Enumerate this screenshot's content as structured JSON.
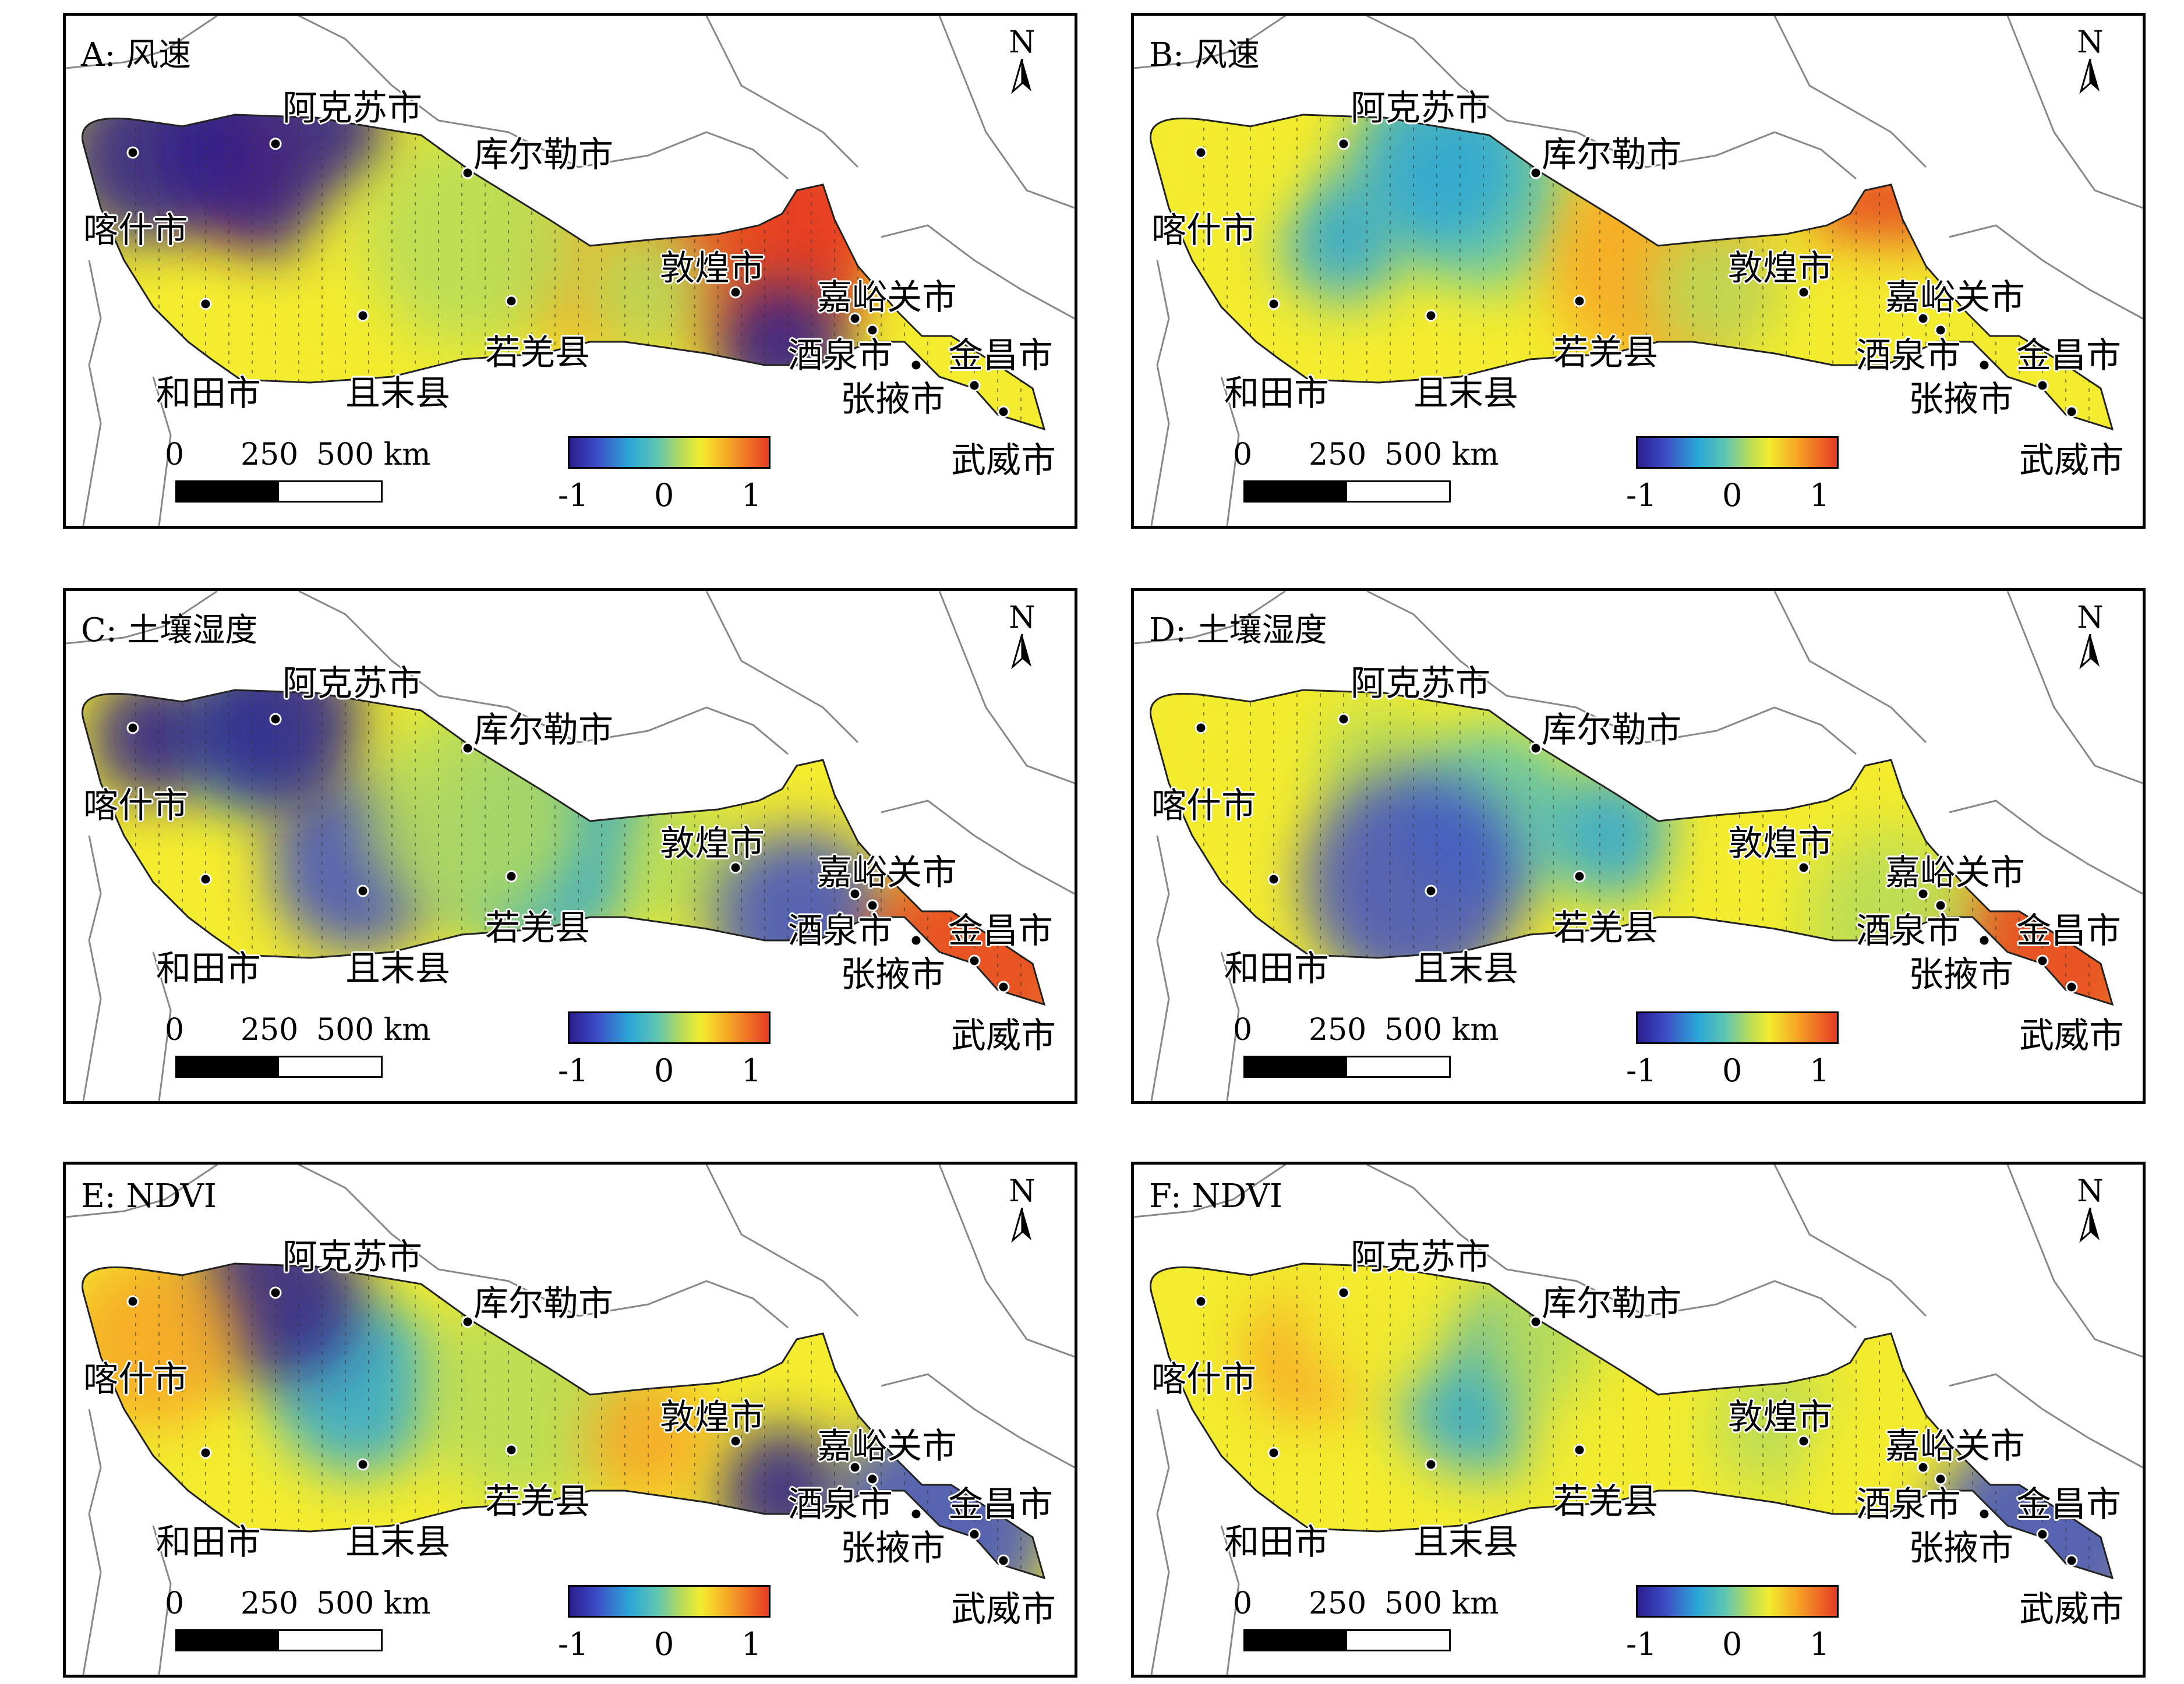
{
  "panels": [
    {
      "id": "A",
      "title": "A: 风速"
    },
    {
      "id": "B",
      "title": "B: 风速"
    },
    {
      "id": "C",
      "title": "C: 土壤湿度"
    },
    {
      "id": "D",
      "title": "D: 土壤湿度"
    },
    {
      "id": "E",
      "title": "E: NDVI"
    },
    {
      "id": "F",
      "title": "F: NDVI"
    }
  ],
  "cities": {
    "aksu": "阿克苏市",
    "korla": "库尔勒市",
    "kashgar": "喀什市",
    "dunhuang": "敦煌市",
    "jiayuguan": "嘉峪关市",
    "jiuquan": "酒泉市",
    "jinchang": "金昌市",
    "zhangye": "张掖市",
    "wuwei": "武威市",
    "hotan": "和田市",
    "qiemo": "且末县",
    "ruoqiang": "若羌县"
  },
  "north_label": "N",
  "scale": {
    "t0": "0",
    "t1": "250",
    "t2": "500 km"
  },
  "colorbar": {
    "min": "-1",
    "mid": "0",
    "max": "1",
    "colors": [
      "#2b1d8f",
      "#3d4ec6",
      "#2aa6d8",
      "#5ec6b0",
      "#b6dc5a",
      "#f3ec2f",
      "#f7a526",
      "#e63b24"
    ]
  }
}
